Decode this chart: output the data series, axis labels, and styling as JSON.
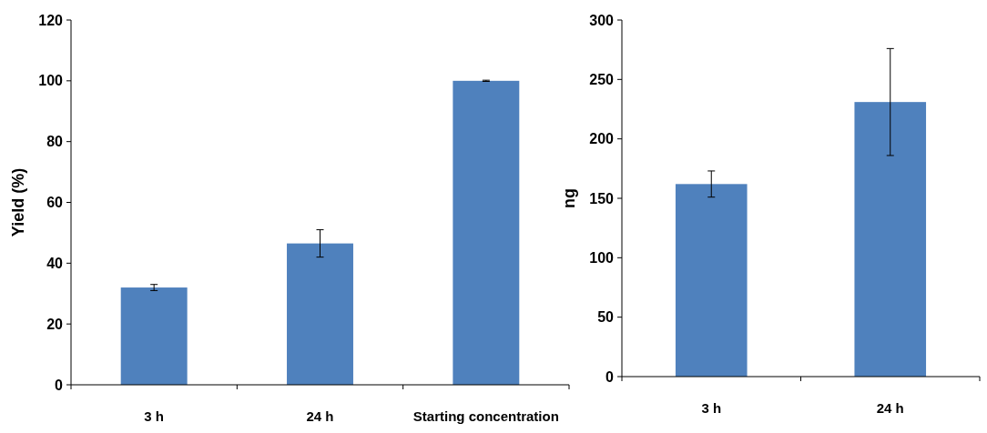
{
  "chart_data": [
    {
      "type": "bar",
      "ylabel": "Yield (%)",
      "categories": [
        "3 h",
        "24 h",
        "Starting concentration"
      ],
      "values": [
        32,
        46.5,
        100
      ],
      "errors": [
        1,
        4.5,
        0.2
      ],
      "color": "#4f81bd",
      "ylim": [
        0,
        120
      ],
      "yticks": [
        0,
        20,
        40,
        60,
        80,
        100,
        120
      ],
      "grid": false
    },
    {
      "type": "bar",
      "ylabel": "ng",
      "categories": [
        "3 h",
        "24 h"
      ],
      "values": [
        162,
        231
      ],
      "errors": [
        11,
        45
      ],
      "color": "#4f81bd",
      "ylim": [
        0,
        300
      ],
      "yticks": [
        0,
        50,
        100,
        150,
        200,
        250,
        300
      ],
      "grid": false
    }
  ]
}
